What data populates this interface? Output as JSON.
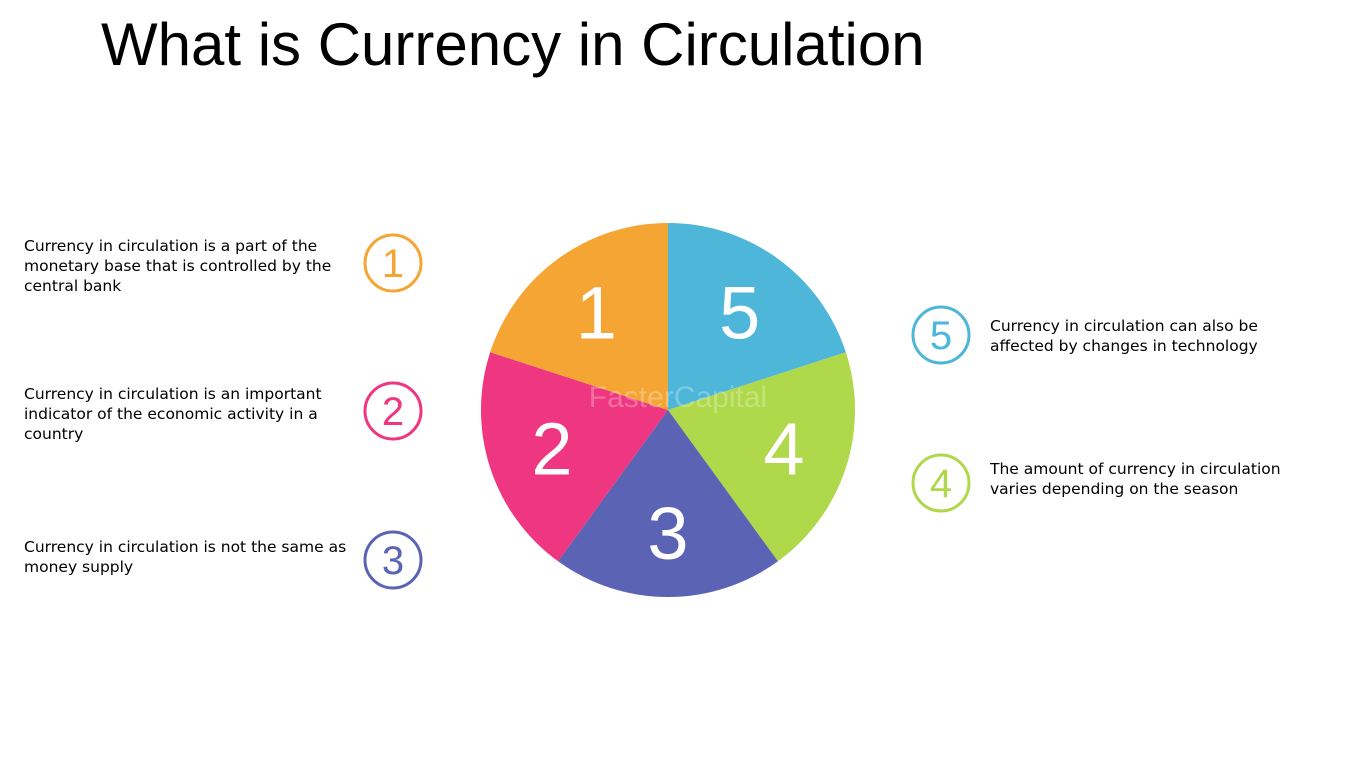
{
  "title": "What is Currency in Circulation",
  "points": [
    {
      "number": "1",
      "text": "Currency in circulation is a part of the monetary base that is controlled by the central bank",
      "color": "#f5a534"
    },
    {
      "number": "2",
      "text": "Currency in circulation is an important indicator of the economic activity in a country",
      "color": "#ef3680"
    },
    {
      "number": "3",
      "text": "Currency in circulation is not the same as money supply",
      "color": "#5b63b5"
    },
    {
      "number": "4",
      "text": "The amount of currency in circulation varies depending on the season",
      "color": "#afd84a"
    },
    {
      "number": "5",
      "text": "Currency in circulation can also be affected by changes in technology",
      "color": "#4db6d9"
    }
  ],
  "pie_segments": [
    {
      "number": "5",
      "color": "#4db6d9"
    },
    {
      "number": "4",
      "color": "#afd84a"
    },
    {
      "number": "3",
      "color": "#5b63b5"
    },
    {
      "number": "2",
      "color": "#ef3680"
    },
    {
      "number": "1",
      "color": "#f5a534"
    }
  ],
  "watermark": "FasterCapital"
}
